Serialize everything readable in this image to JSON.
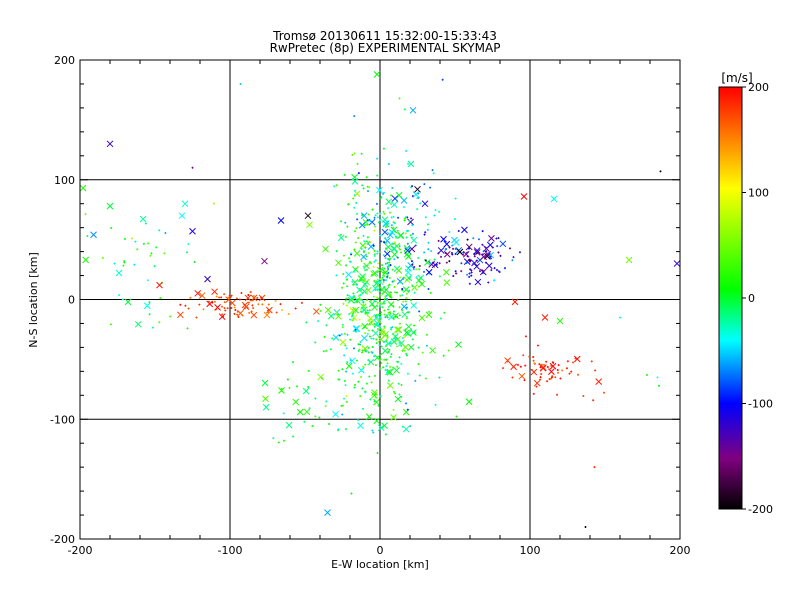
{
  "chart_data": {
    "type": "scatter",
    "title": "Tromsø 20130611 15:32:00-15:33:43",
    "subtitle": "RwPretec (8p) EXPERIMENTAL SKYMAP",
    "xlabel": "E-W location [km]",
    "ylabel": "N-S location [km]",
    "xlim": [
      -200,
      200
    ],
    "ylim": [
      -200,
      200
    ],
    "xticks": [
      "-200",
      "-100",
      "0",
      "100",
      "200"
    ],
    "yticks": [
      "-200",
      "-100",
      "0",
      "100",
      "200"
    ],
    "grid": true,
    "colorbar": {
      "label": "[m/s]",
      "range": [
        -200,
        200
      ],
      "ticks": [
        "200",
        "100",
        "0",
        "-100",
        "-200"
      ],
      "colormap": [
        "#000000",
        "#800080",
        "#0000ff",
        "#00ffff",
        "#00ff00",
        "#ffff00",
        "#ff0000"
      ]
    },
    "markers": [
      {
        "name": "point",
        "symbol": "+"
      },
      {
        "name": "cross",
        "symbol": "x"
      }
    ],
    "series": [
      {
        "clusters": [
          {
            "cx": -3,
            "cy": 10,
            "sx": 14,
            "sy": 45,
            "n": 420,
            "v": 10,
            "vs": 35
          },
          {
            "cx": 2,
            "cy": -25,
            "sx": 18,
            "sy": 35,
            "n": 200,
            "v": 0,
            "vs": 25
          },
          {
            "cx": 15,
            "cy": 55,
            "sx": 14,
            "sy": 30,
            "n": 120,
            "v": -50,
            "vs": 40
          },
          {
            "cx": 60,
            "cy": 35,
            "sx": 15,
            "sy": 9,
            "n": 120,
            "v": -120,
            "vs": 35
          },
          {
            "cx": -95,
            "cy": -5,
            "sx": 18,
            "sy": 6,
            "n": 80,
            "v": 175,
            "vs": 20
          },
          {
            "cx": 105,
            "cy": -55,
            "sx": 12,
            "sy": 9,
            "n": 45,
            "v": 180,
            "vs": 15
          },
          {
            "cx": 130,
            "cy": -65,
            "sx": 10,
            "sy": 10,
            "n": 20,
            "v": 185,
            "vs": 12
          },
          {
            "cx": -160,
            "cy": 30,
            "sx": 20,
            "sy": 25,
            "n": 45,
            "v": 0,
            "vs": 30
          },
          {
            "cx": -55,
            "cy": -80,
            "sx": 14,
            "sy": 20,
            "n": 25,
            "v": 10,
            "vs": 20
          },
          {
            "cx": -10,
            "cy": -100,
            "sx": 20,
            "sy": 10,
            "n": 22,
            "v": -10,
            "vs": 30
          }
        ],
        "sparse": [
          {
            "x": -180,
            "y": 130,
            "v": -120,
            "m": "x"
          },
          {
            "x": -125,
            "y": 110,
            "v": -150,
            "m": "+"
          },
          {
            "x": -93,
            "y": 180,
            "v": -50,
            "m": "+"
          },
          {
            "x": -2,
            "y": 188,
            "v": 10,
            "m": "x"
          },
          {
            "x": 22,
            "y": 158,
            "v": -60,
            "m": "x"
          },
          {
            "x": 13,
            "y": 168,
            "v": 40,
            "m": "+"
          },
          {
            "x": -17,
            "y": 122,
            "v": 60,
            "m": "+"
          },
          {
            "x": 96,
            "y": 86,
            "v": 200,
            "m": "x"
          },
          {
            "x": 116,
            "y": 84,
            "v": -40,
            "m": "x"
          },
          {
            "x": 187,
            "y": 107,
            "v": -190,
            "m": "+"
          },
          {
            "x": 198,
            "y": 30,
            "v": -120,
            "m": "x"
          },
          {
            "x": 166,
            "y": 33,
            "v": 50,
            "m": "x"
          },
          {
            "x": 185,
            "y": -65,
            "v": -40,
            "m": "+"
          },
          {
            "x": 186,
            "y": -72,
            "v": 10,
            "m": "+"
          },
          {
            "x": 178,
            "y": -63,
            "v": 20,
            "m": "+"
          },
          {
            "x": 160,
            "y": -15,
            "v": -40,
            "m": "+"
          },
          {
            "x": 143,
            "y": -140,
            "v": 190,
            "m": "+"
          },
          {
            "x": 137,
            "y": -190,
            "v": -200,
            "m": "+"
          },
          {
            "x": -35,
            "y": -178,
            "v": -60,
            "m": "x"
          },
          {
            "x": -19,
            "y": -162,
            "v": 10,
            "m": "+"
          },
          {
            "x": -64,
            "y": -118,
            "v": 20,
            "m": "+"
          },
          {
            "x": -198,
            "y": 93,
            "v": 20,
            "m": "x"
          },
          {
            "x": -180,
            "y": 78,
            "v": 0,
            "m": "x"
          },
          {
            "x": -132,
            "y": 70,
            "v": -40,
            "m": "x"
          },
          {
            "x": -130,
            "y": 80,
            "v": -30,
            "m": "x"
          },
          {
            "x": -125,
            "y": 57,
            "v": -110,
            "m": "x"
          },
          {
            "x": -115,
            "y": 17,
            "v": -120,
            "m": "x"
          },
          {
            "x": -77,
            "y": 32,
            "v": -150,
            "m": "x"
          },
          {
            "x": -66,
            "y": 66,
            "v": -100,
            "m": "x"
          },
          {
            "x": -48,
            "y": 70,
            "v": -190,
            "m": "x"
          },
          {
            "x": -147,
            "y": 12,
            "v": 190,
            "m": "x"
          },
          {
            "x": -168,
            "y": -2,
            "v": 0,
            "m": "x"
          },
          {
            "x": 90,
            "y": -2,
            "v": 190,
            "m": "x"
          },
          {
            "x": 110,
            "y": -15,
            "v": 190,
            "m": "x"
          },
          {
            "x": 120,
            "y": -18,
            "v": 20,
            "m": "x"
          },
          {
            "x": 30,
            "y": 80,
            "v": -110,
            "m": "x"
          },
          {
            "x": 25,
            "y": 92,
            "v": -190,
            "m": "x"
          }
        ]
      }
    ]
  }
}
